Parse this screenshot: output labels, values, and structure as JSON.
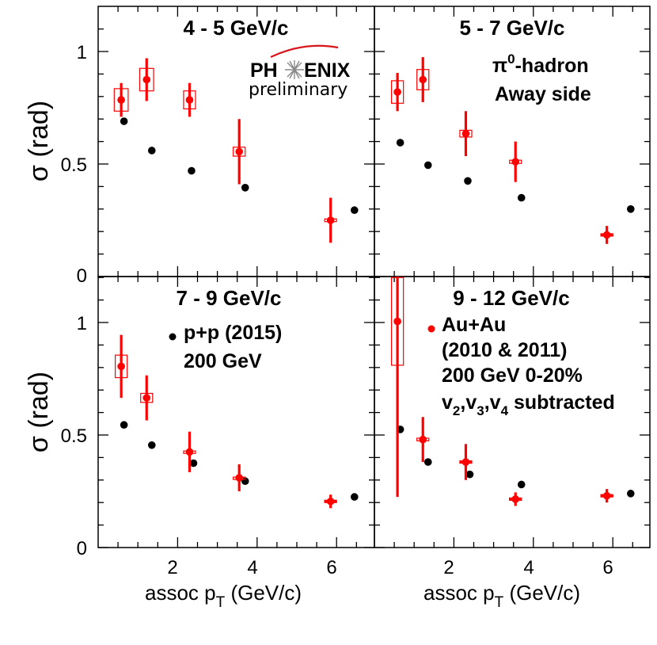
{
  "chart_data": [
    {
      "type": "scatter",
      "title": "4 - 5 GeV/c",
      "ylabel": "σ (rad)",
      "xlabel": "",
      "xlim": [
        0,
        7.2
      ],
      "ylim": [
        0,
        1.2
      ],
      "series": [
        {
          "name": "p+p (2015) 200 GeV",
          "color": "#000000",
          "points": [
            [
              0.65,
              0.69
            ],
            [
              1.35,
              0.56
            ],
            [
              2.35,
              0.47
            ],
            [
              3.7,
              0.395
            ],
            [
              6.45,
              0.295
            ]
          ]
        },
        {
          "name": "Au+Au (2010 & 2011) 200 GeV 0-20% v2,v3,v4 subtracted",
          "color": "#ff0000",
          "points": [
            [
              0.58,
              0.785
            ],
            [
              1.22,
              0.875
            ],
            [
              2.3,
              0.785
            ],
            [
              3.55,
              0.555
            ],
            [
              5.85,
              0.25
            ]
          ],
          "stat_err": [
            0.075,
            0.095,
            0.075,
            0.145,
            0.1
          ],
          "sys_box": [
            [
              0.35,
              0.1
            ],
            [
              0.35,
              0.1
            ],
            [
              0.3,
              0.08
            ],
            [
              0.3,
              0.04
            ],
            [
              0.3,
              0.012
            ]
          ]
        }
      ]
    },
    {
      "type": "scatter",
      "title": "5 - 7 GeV/c",
      "xlabel": "",
      "ylabel": "",
      "xlim": [
        0,
        7.2
      ],
      "ylim": [
        0,
        1.2
      ],
      "series": [
        {
          "name": "p+p (2015) 200 GeV",
          "color": "#000000",
          "points": [
            [
              0.65,
              0.595
            ],
            [
              1.35,
              0.495
            ],
            [
              2.35,
              0.425
            ],
            [
              3.7,
              0.35
            ],
            [
              6.45,
              0.3
            ]
          ]
        },
        {
          "name": "Au+Au (2010 & 2011) 200 GeV 0-20% v2,v3,v4 subtracted",
          "color": "#ff0000",
          "points": [
            [
              0.58,
              0.82
            ],
            [
              1.22,
              0.875
            ],
            [
              2.3,
              0.635
            ],
            [
              3.55,
              0.51
            ],
            [
              5.85,
              0.185
            ]
          ],
          "stat_err": [
            0.085,
            0.1,
            0.1,
            0.09,
            0.04
          ],
          "sys_box": [
            [
              0.3,
              0.1
            ],
            [
              0.3,
              0.09
            ],
            [
              0.3,
              0.03
            ],
            [
              0.3,
              0.014
            ],
            [
              0.3,
              0.0
            ]
          ]
        }
      ]
    },
    {
      "type": "scatter",
      "title": "7 - 9 GeV/c",
      "ylabel": "σ (rad)",
      "xlabel": "assoc pT (GeV/c)",
      "xlim": [
        0,
        7.2
      ],
      "ylim": [
        0,
        1.2
      ],
      "series": [
        {
          "name": "p+p (2015) 200 GeV",
          "color": "#000000",
          "points": [
            [
              0.65,
              0.545
            ],
            [
              1.35,
              0.455
            ],
            [
              2.4,
              0.375
            ],
            [
              3.7,
              0.295
            ],
            [
              6.45,
              0.225
            ]
          ]
        },
        {
          "name": "Au+Au (2010 & 2011) 200 GeV 0-20% v2,v3,v4 subtracted",
          "color": "#ff0000",
          "points": [
            [
              0.58,
              0.805
            ],
            [
              1.22,
              0.665
            ],
            [
              2.3,
              0.425
            ],
            [
              3.55,
              0.31
            ],
            [
              5.85,
              0.205
            ]
          ],
          "stat_err": [
            0.14,
            0.1,
            0.09,
            0.06,
            0.03
          ],
          "sys_box": [
            [
              0.3,
              0.1
            ],
            [
              0.3,
              0.04
            ],
            [
              0.3,
              0.008
            ],
            [
              0.3,
              0.006
            ],
            [
              0.3,
              0.0
            ]
          ]
        }
      ]
    },
    {
      "type": "scatter",
      "title": "9 - 12 GeV/c",
      "xlabel": "assoc pT (GeV/c)",
      "ylabel": "",
      "xlim": [
        0,
        7.2
      ],
      "ylim": [
        0,
        1.2
      ],
      "series": [
        {
          "name": "p+p (2015) 200 GeV",
          "color": "#000000",
          "points": [
            [
              0.65,
              0.525
            ],
            [
              1.35,
              0.38
            ],
            [
              2.4,
              0.325
            ],
            [
              3.7,
              0.28
            ],
            [
              6.45,
              0.24
            ]
          ]
        },
        {
          "name": "Au+Au (2010 & 2011) 200 GeV 0-20% v2,v3,v4 subtracted",
          "color": "#ff0000",
          "points": [
            [
              0.58,
              1.005
            ],
            [
              1.22,
              0.48
            ],
            [
              2.3,
              0.38
            ],
            [
              3.55,
              0.215
            ],
            [
              5.85,
              0.23
            ]
          ],
          "stat_err": [
            0.78,
            0.1,
            0.08,
            0.03,
            0.03
          ],
          "sys_box": [
            [
              0.3,
              0.39
            ],
            [
              0.3,
              0.012
            ],
            [
              0.3,
              0.0
            ],
            [
              0.3,
              0.0
            ],
            [
              0.3,
              0.0
            ]
          ]
        }
      ]
    }
  ],
  "ticks": {
    "x_major": [
      2,
      4,
      6
    ],
    "y_major": [
      0,
      0.5,
      1
    ],
    "x_labels": [
      "2",
      "4",
      "6"
    ],
    "y_labels": [
      "0",
      "0.5",
      "1"
    ],
    "y_top_panel_zero": "0"
  },
  "labels": {
    "ylabel_top": "σ (rad)",
    "ylabel_bottom": "σ (rad)",
    "xlabel_left": "assoc p",
    "xlabel_left_sub": "T",
    "xlabel_left_unit": " (GeV/c)",
    "xlabel_right": "assoc p",
    "xlabel_right_sub": "T",
    "xlabel_right_unit": " (GeV/c)"
  },
  "annotations": {
    "logo_left": "PH",
    "logo_right": "ENIX",
    "preliminary": "preliminary",
    "pi0": "π",
    "pi0_sup": "0",
    "pi0_rest": "-hadron",
    "away": "Away side",
    "pp_line1": "p+p (2015)",
    "pp_line2": "200 GeV",
    "auau_line1": "Au+Au",
    "auau_line2": "(2010 & 2011)",
    "auau_line3": "200 GeV 0-20%",
    "auau_v": "v",
    "auau_v2": "2",
    "auau_v3": "3",
    "auau_v4": "4",
    "auau_subtracted": " subtracted",
    "comma": ","
  },
  "colors": {
    "pp": "#000000",
    "auau": "#ff0000",
    "logo_accent": "#d8141b"
  }
}
